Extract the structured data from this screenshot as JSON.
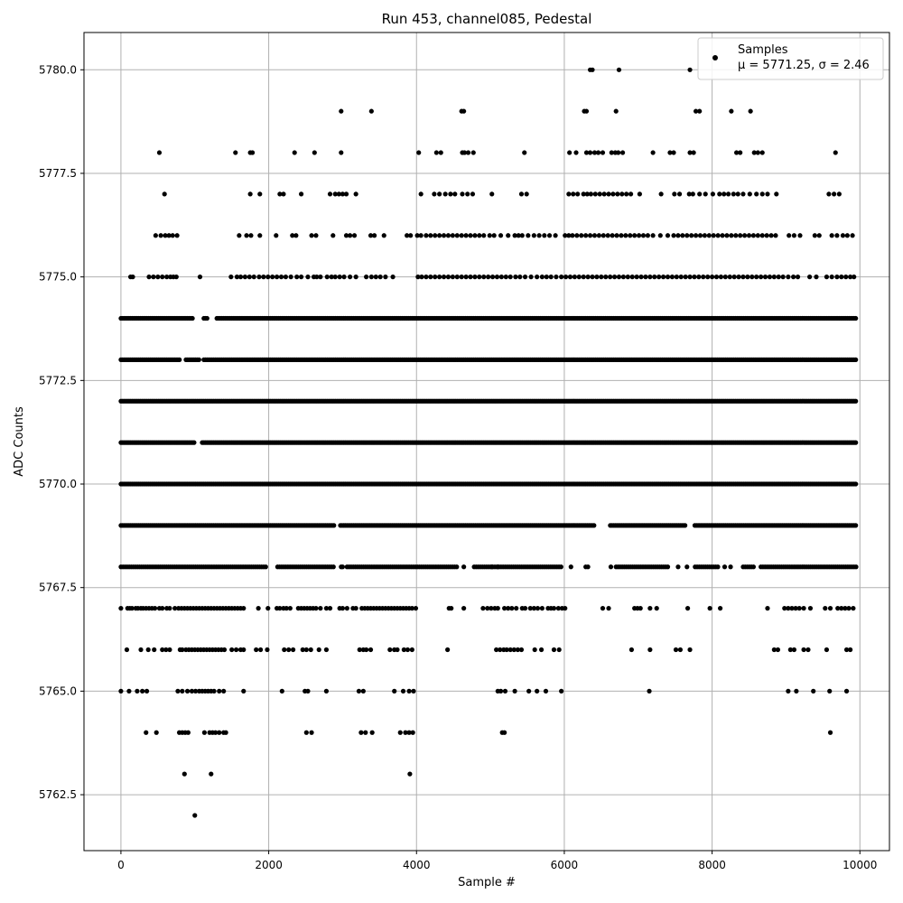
{
  "chart_data": {
    "type": "scatter",
    "title": "Run 453, channel085, Pedestal",
    "xlabel": "Sample #",
    "ylabel": "ADC Counts",
    "xlim": [
      -500,
      10400
    ],
    "ylim": [
      5761.15,
      5780.9
    ],
    "x_ticks": [
      0,
      2000,
      4000,
      6000,
      8000,
      10000
    ],
    "y_ticks": [
      5762.5,
      5765.0,
      5767.5,
      5770.0,
      5772.5,
      5775.0,
      5777.5,
      5780.0
    ],
    "x_tick_labels": [
      "0",
      "2000",
      "4000",
      "6000",
      "8000",
      "10000"
    ],
    "y_tick_labels": [
      "5762.5",
      "5765.0",
      "5767.5",
      "5770.0",
      "5772.5",
      "5775.0",
      "5777.5",
      "5780.0"
    ],
    "grid": true,
    "legend_position": "top-right",
    "marker_color": "#000000",
    "grid_color": "#b0b0b0",
    "series": [
      {
        "name": "Samples",
        "stats_label": "μ = 5771.25, σ = 2.46",
        "x_range": [
          0,
          9950
        ],
        "levels": [
          {
            "y": 5780,
            "x": [
              6350,
              6380,
              6740,
              7700
            ]
          },
          {
            "y": 5779,
            "x": [
              2980,
              3390,
              4610,
              4640,
              6270,
              6300,
              6700,
              7780,
              7830,
              8260,
              8520
            ]
          },
          {
            "y": 5778,
            "x": [
              520,
              1550,
              1750,
              1780,
              2350,
              2620,
              2980,
              4030,
              4270,
              4330,
              4620,
              4650,
              4700,
              4770,
              5460,
              6070,
              6160,
              6300,
              6350,
              6410,
              6460,
              6520,
              6640,
              6690,
              6730,
              6790,
              7200,
              7430,
              7480,
              7700,
              7750,
              8330,
              8380,
              8570,
              8620,
              8680,
              9670
            ]
          },
          {
            "y": 5777,
            "x": [
              590,
              1750,
              1880,
              2150,
              2200,
              2440,
              2830,
              2900,
              2950,
              3000,
              3050,
              3180,
              4060,
              4240,
              4310,
              4390,
              4460,
              4520,
              4620,
              4690,
              4760,
              5020,
              5420,
              5490,
              6060,
              6120,
              6180,
              6260,
              6310,
              6360,
              6420,
              6480,
              6540,
              6600,
              6660,
              6720,
              6780,
              6840,
              6900,
              7020,
              7310,
              7490,
              7560,
              7690,
              7740,
              7830,
              7910,
              8010,
              8100,
              8160,
              8220,
              8290,
              8350,
              8420,
              8510,
              8600,
              8680,
              8750,
              8870,
              9580,
              9650,
              9720
            ]
          },
          {
            "y": 5776,
            "x": [
              470,
              540,
              600,
              650,
              700,
              760,
              1600,
              1700,
              1760,
              1880,
              2100,
              2320,
              2370,
              2580,
              2640,
              2870,
              3050,
              3100,
              3160,
              3380,
              3430,
              3560,
              3870,
              3920,
              4010,
              4060,
              4130,
              4190,
              4250,
              4310,
              4370,
              4430,
              4490,
              4550,
              4610,
              4670,
              4730,
              4790,
              4850,
              4910,
              4990,
              5050,
              5140,
              5240,
              5330,
              5380,
              5430,
              5510,
              5590,
              5660,
              5730,
              5800,
              5880,
              6010,
              6060,
              6110,
              6170,
              6230,
              6290,
              6350,
              6410,
              6470,
              6530,
              6590,
              6650,
              6710,
              6770,
              6830,
              6890,
              6950,
              7010,
              7070,
              7130,
              7200,
              7300,
              7400,
              7480,
              7540,
              7600,
              7660,
              7720,
              7780,
              7840,
              7900,
              7960,
              8020,
              8080,
              8140,
              8200,
              8260,
              8320,
              8380,
              8440,
              8500,
              8560,
              8620,
              8680,
              8740,
              8800,
              8860,
              9040,
              9110,
              9190,
              9390,
              9450,
              9620,
              9690,
              9770,
              9830,
              9900
            ]
          },
          {
            "y": 5775,
            "x": [
              130,
              160,
              380,
              440,
              500,
              560,
              620,
              670,
              710,
              750,
              1070,
              1490,
              1570,
              1620,
              1680,
              1740,
              1800,
              1870,
              1930,
              1990,
              2050,
              2110,
              2170,
              2230,
              2300,
              2380,
              2440,
              2530,
              2610,
              2650,
              2700,
              2790,
              2850,
              2900,
              2960,
              3020,
              3100,
              3180,
              3320,
              3390,
              3450,
              3510,
              3580,
              3680,
              4020,
              4070,
              4130,
              4190,
              4250,
              4310,
              4370,
              4430,
              4490,
              4550,
              4610,
              4670,
              4730,
              4790,
              4850,
              4910,
              4970,
              5030,
              5090,
              5150,
              5210,
              5270,
              5340,
              5400,
              5470,
              5550,
              5630,
              5700,
              5760,
              5820,
              5890,
              5960,
              6020,
              6080,
              6140,
              6200,
              6260,
              6320,
              6380,
              6440,
              6500,
              6560,
              6620,
              6680,
              6740,
              6800,
              6860,
              6920,
              6980,
              7040,
              7100,
              7160,
              7220,
              7280,
              7340,
              7400,
              7460,
              7520,
              7580,
              7640,
              7700,
              7760,
              7820,
              7880,
              7940,
              8000,
              8060,
              8120,
              8180,
              8240,
              8300,
              8360,
              8420,
              8480,
              8540,
              8600,
              8660,
              8720,
              8780,
              8840,
              8900,
              8960,
              9030,
              9100,
              9160,
              9320,
              9410,
              9550,
              9620,
              9690,
              9750,
              9810,
              9870,
              9920
            ]
          },
          {
            "dense": true,
            "y": 5774,
            "x_gaps": [
              [
                980,
                1100
              ],
              [
                1180,
                1280
              ]
            ]
          },
          {
            "dense": true,
            "y": 5773,
            "x_gaps": [
              [
                800,
                860
              ],
              [
                1060,
                1110
              ]
            ]
          },
          {
            "dense": true,
            "y": 5772,
            "x_gaps": []
          },
          {
            "dense": true,
            "y": 5771,
            "x_gaps": [
              [
                1000,
                1080
              ]
            ]
          },
          {
            "dense": true,
            "y": 5770,
            "x_gaps": []
          },
          {
            "dense": true,
            "y": 5769,
            "x_gaps": [
              [
                2900,
                2960
              ],
              [
                6420,
                6620
              ],
              [
                7650,
                7750
              ]
            ]
          },
          {
            "y": 5768,
            "x_clusters": [
              [
                0,
                1970
              ],
              [
                2120,
                2880
              ],
              [
                3060,
                4560
              ],
              [
                4780,
                5980
              ],
              [
                6700,
                7400
              ],
              [
                7770,
                8090
              ],
              [
                8420,
                8580
              ],
              [
                8660,
                9950
              ]
            ],
            "x": [
              2980,
              3000,
              4640,
              5020,
              5100,
              6090,
              6290,
              6320,
              6630,
              7540,
              7660,
              8170,
              8250
            ]
          },
          {
            "y": 5767,
            "x": [
              0,
              90,
              120,
              150,
              200,
              230,
              270,
              300,
              340,
              380,
              420,
              460,
              520,
              560,
              620,
              660,
              730,
              780,
              820,
              860,
              900,
              940,
              980,
              1020,
              1060,
              1100,
              1140,
              1180,
              1220,
              1260,
              1300,
              1340,
              1380,
              1420,
              1460,
              1500,
              1540,
              1580,
              1620,
              1660,
              1860,
              1990,
              2110,
              2150,
              2200,
              2240,
              2290,
              2400,
              2440,
              2480,
              2520,
              2560,
              2600,
              2640,
              2700,
              2780,
              2830,
              2960,
              3000,
              3060,
              3140,
              3180,
              3260,
              3300,
              3340,
              3380,
              3420,
              3460,
              3500,
              3540,
              3580,
              3620,
              3660,
              3700,
              3740,
              3780,
              3820,
              3860,
              3900,
              3940,
              3990,
              4440,
              4470,
              4640,
              4900,
              4960,
              5010,
              5060,
              5100,
              5190,
              5240,
              5290,
              5350,
              5430,
              5470,
              5540,
              5590,
              5640,
              5700,
              5780,
              5820,
              5860,
              5920,
              5970,
              6010,
              6520,
              6600,
              6950,
              6990,
              7030,
              7160,
              7250,
              7670,
              7970,
              8110,
              8750,
              8980,
              9030,
              9080,
              9130,
              9180,
              9240,
              9330,
              9530,
              9600,
              9700,
              9750,
              9800,
              9850,
              9910
            ]
          },
          {
            "y": 5766,
            "x": [
              80,
              270,
              370,
              450,
              560,
              610,
              660,
              800,
              830,
              880,
              920,
              960,
              1000,
              1040,
              1080,
              1120,
              1160,
              1200,
              1240,
              1280,
              1320,
              1360,
              1400,
              1500,
              1560,
              1620,
              1660,
              1830,
              1890,
              1980,
              2210,
              2270,
              2330,
              2460,
              2510,
              2570,
              2680,
              2780,
              3230,
              3280,
              3320,
              3380,
              3640,
              3700,
              3740,
              3830,
              3880,
              3940,
              4420,
              5080,
              5130,
              5180,
              5220,
              5270,
              5320,
              5370,
              5420,
              5600,
              5690,
              5860,
              5930,
              6910,
              7160,
              7510,
              7570,
              7700,
              8840,
              8890,
              9060,
              9110,
              9240,
              9300,
              9550,
              9820,
              9870
            ]
          },
          {
            "y": 5765,
            "x": [
              0,
              110,
              220,
              290,
              350,
              770,
              830,
              900,
              960,
              1010,
              1060,
              1100,
              1140,
              1180,
              1220,
              1260,
              1330,
              1390,
              1660,
              2180,
              2490,
              2530,
              2780,
              3220,
              3280,
              3700,
              3820,
              3900,
              3960,
              5100,
              5140,
              5200,
              5330,
              5520,
              5630,
              5750,
              5960,
              7150,
              9030,
              9140,
              9370,
              9590,
              9820
            ]
          },
          {
            "y": 5764,
            "x": [
              340,
              480,
              790,
              830,
              870,
              910,
              1130,
              1200,
              1240,
              1280,
              1330,
              1390,
              1420,
              2510,
              2580,
              3250,
              3310,
              3400,
              3780,
              3850,
              3900,
              3950,
              5160,
              5190,
              9600
            ]
          },
          {
            "y": 5763,
            "x": [
              860,
              1220,
              3910
            ]
          },
          {
            "y": 5762,
            "x": [
              1000
            ]
          }
        ]
      }
    ]
  }
}
